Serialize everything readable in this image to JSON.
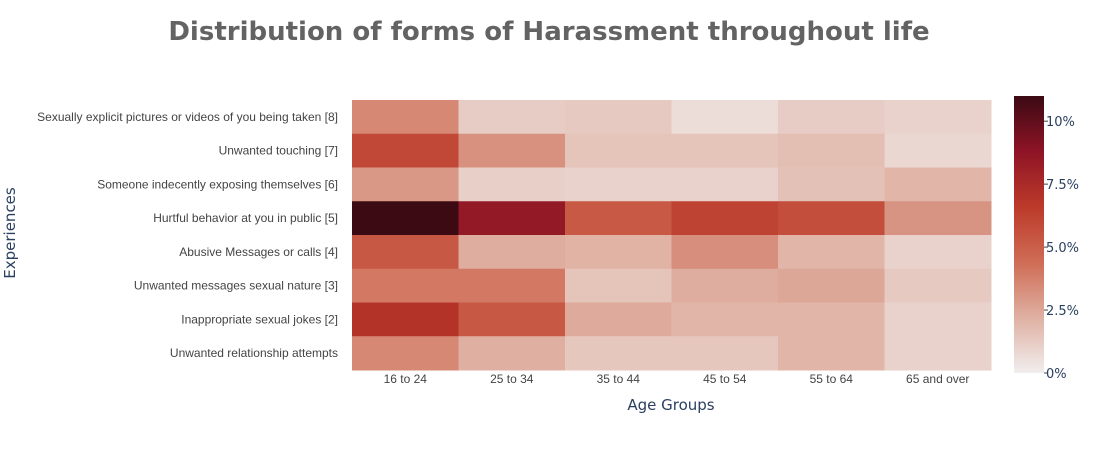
{
  "chart_data": {
    "type": "heatmap",
    "title": "Distribution of forms of Harassment throughout life",
    "xlabel": "Age Groups",
    "ylabel": "Experiences",
    "x": [
      "16 to 24",
      "25 to 34",
      "35 to 44",
      "45 to 54",
      "55 to 64",
      "65 and over"
    ],
    "y": [
      "Sexually explicit pictures or videos of you being taken [8]",
      "Unwanted touching [7]",
      "Someone indecently exposing themselves [6]",
      "Hurtful behavior at you in public [5]",
      "Abusive Messages or calls [4]",
      "Unwanted messages sexual nature [3]",
      "Inappropriate sexual jokes [2]",
      "Unwanted relationship attempts"
    ],
    "z": [
      [
        3.5,
        1.2,
        1.3,
        0.6,
        1.2,
        1.0
      ],
      [
        6.0,
        3.2,
        1.5,
        1.5,
        1.7,
        0.8
      ],
      [
        3.0,
        1.1,
        1.0,
        1.0,
        1.6,
        2.0
      ],
      [
        11.0,
        8.5,
        5.2,
        6.2,
        5.7,
        3.1
      ],
      [
        5.3,
        2.3,
        2.1,
        3.3,
        2.0,
        1.0
      ],
      [
        4.0,
        4.0,
        1.5,
        2.3,
        2.5,
        1.3
      ],
      [
        7.0,
        5.3,
        2.4,
        2.0,
        2.0,
        1.0
      ],
      [
        3.5,
        2.2,
        1.4,
        1.4,
        2.0,
        1.0
      ]
    ],
    "zmin": 0,
    "zmax": 11,
    "colorbar": {
      "ticks": [
        0,
        2.5,
        5,
        7.5,
        10
      ],
      "ticklabels": [
        "0%",
        "2.5%",
        "5.0%",
        "7.5%",
        "10%"
      ]
    },
    "colorscale": [
      [
        0.0,
        "#f1eeee"
      ],
      [
        0.2,
        "#dfb0a2"
      ],
      [
        0.4,
        "#cf6c55"
      ],
      [
        0.6,
        "#bc3a2a"
      ],
      [
        0.8,
        "#8e1426"
      ],
      [
        1.0,
        "#3b0a13"
      ]
    ]
  }
}
